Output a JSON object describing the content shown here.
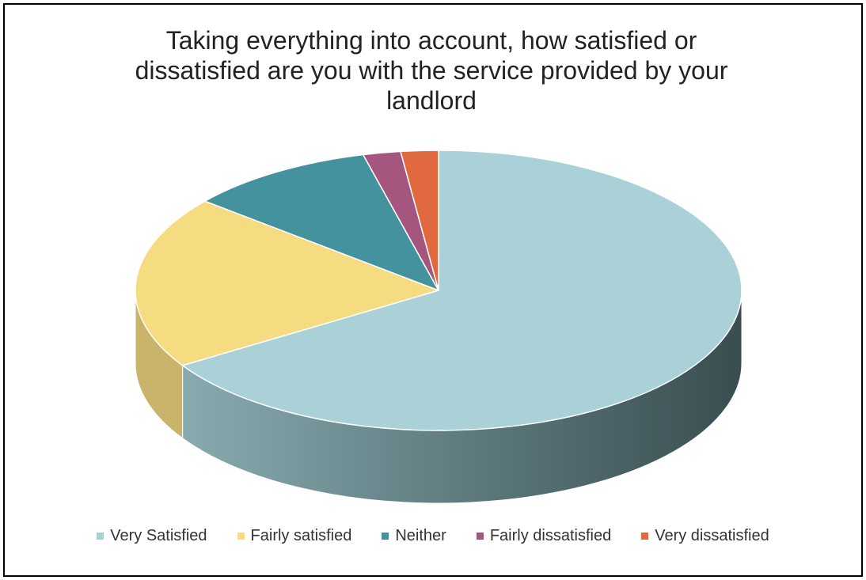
{
  "chart_data": {
    "type": "pie",
    "title": "Taking everything into account, how satisfied or dissatisfied are you with the service provided by your landlord",
    "categories": [
      "Very Satisfied",
      "Fairly satisfied",
      "Neither",
      "Fairly dissatisfied",
      "Very dissatisfied"
    ],
    "values": [
      66,
      20,
      10,
      2,
      2
    ],
    "colors": [
      "#A9D1D7",
      "#F6DC80",
      "#43929E",
      "#A6557F",
      "#E0693F"
    ],
    "legend_position": "bottom",
    "style": "3d"
  }
}
